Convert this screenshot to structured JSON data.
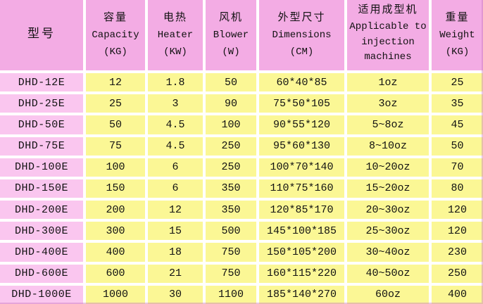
{
  "colors": {
    "header_bg": "#f3ace4",
    "model_bg": "#fac6ef",
    "cell_bg": "#fbf795",
    "grid": "#ffffff",
    "text": "#111111"
  },
  "chart_data": {
    "type": "table",
    "columns": [
      {
        "key": "model",
        "zh": "型号",
        "en": "",
        "unit": ""
      },
      {
        "key": "capacity",
        "zh": "容量",
        "en": "Capacity",
        "unit": "(KG)"
      },
      {
        "key": "heater",
        "zh": "电热",
        "en": "Heater",
        "unit": "(KW)"
      },
      {
        "key": "blower",
        "zh": "风机",
        "en": "Blower",
        "unit": "(W)"
      },
      {
        "key": "dimensions",
        "zh": "外型尺寸",
        "en": "Dimensions",
        "unit": "(CM)"
      },
      {
        "key": "applicable-machines",
        "zh": "适用成型机",
        "en": "Applicable to injection machines",
        "unit": ""
      },
      {
        "key": "weight",
        "zh": "重量",
        "en": "Weight",
        "unit": "(KG)"
      }
    ],
    "rows": [
      [
        "DHD-12E",
        "12",
        "1.8",
        "50",
        "60*40*85",
        "1oz",
        "25"
      ],
      [
        "DHD-25E",
        "25",
        "3",
        "90",
        "75*50*105",
        "3oz",
        "35"
      ],
      [
        "DHD-50E",
        "50",
        "4.5",
        "100",
        "90*55*120",
        "5~8oz",
        "45"
      ],
      [
        "DHD-75E",
        "75",
        "4.5",
        "250",
        "95*60*130",
        "8~10oz",
        "50"
      ],
      [
        "DHD-100E",
        "100",
        "6",
        "250",
        "100*70*140",
        "10~20oz",
        "70"
      ],
      [
        "DHD-150E",
        "150",
        "6",
        "350",
        "110*75*160",
        "15~20oz",
        "80"
      ],
      [
        "DHD-200E",
        "200",
        "12",
        "350",
        "120*85*170",
        "20~30oz",
        "120"
      ],
      [
        "DHD-300E",
        "300",
        "15",
        "500",
        "145*100*185",
        "25~30oz",
        "120"
      ],
      [
        "DHD-400E",
        "400",
        "18",
        "750",
        "150*105*200",
        "30~40oz",
        "230"
      ],
      [
        "DHD-600E",
        "600",
        "21",
        "750",
        "160*115*220",
        "40~50oz",
        "250"
      ],
      [
        "DHD-1000E",
        "1000",
        "30",
        "1100",
        "185*140*270",
        "60oz",
        "400"
      ]
    ]
  }
}
